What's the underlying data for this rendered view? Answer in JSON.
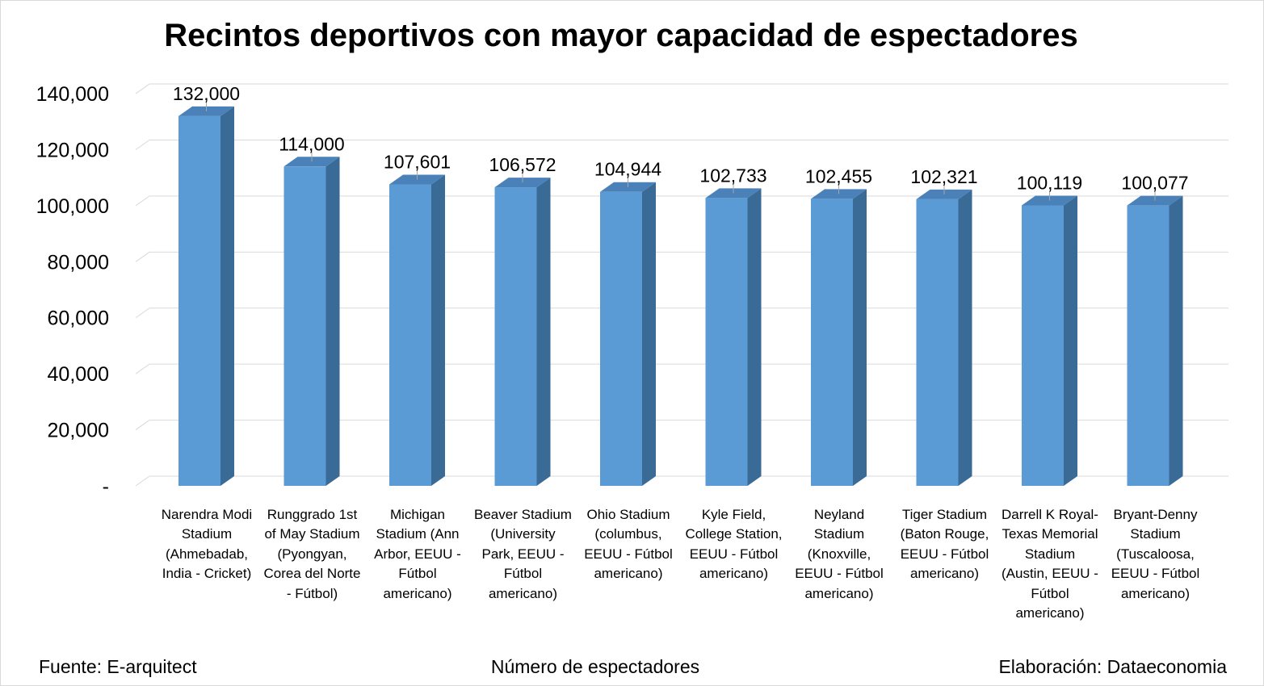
{
  "chart_data": {
    "type": "bar",
    "title": "Recintos deportivos con mayor capacidad de espectadores",
    "xlabel": "Número de espectadores",
    "ylabel": "",
    "ylim": [
      0,
      140000
    ],
    "yticks": [
      0,
      20000,
      40000,
      60000,
      80000,
      100000,
      120000,
      140000
    ],
    "ytick_labels": [
      "-",
      "20,000",
      "40,000",
      "60,000",
      "80,000",
      "100,000",
      "120,000",
      "140,000"
    ],
    "grid": true,
    "style": "3d-columns",
    "bar_color": "#5b9bd5",
    "categories": [
      "Narendra Modi Stadium (Ahmebadab, India - Cricket)",
      "Runggrado 1st of May Stadium (Pyongyan, Corea del Norte - Fútbol)",
      "Michigan Stadium (Ann Arbor, EEUU - Fútbol americano)",
      "Beaver Stadium (University Park, EEUU - Fútbol americano)",
      "Ohio Stadium (columbus, EEUU - Fútbol americano)",
      "Kyle Field, College Station, EEUU - Fútbol americano)",
      "Neyland Stadium (Knoxville, EEUU - Fútbol americano)",
      "Tiger Stadium (Baton Rouge, EEUU - Fútbol americano)",
      "Darrell K Royal-Texas Memorial Stadium (Austin, EEUU - Fútbol americano)",
      "Bryant-Denny Stadium (Tuscaloosa, EEUU - Fútbol americano)"
    ],
    "values": [
      132000,
      114000,
      107601,
      106572,
      104944,
      102733,
      102455,
      102321,
      100119,
      100077
    ],
    "data_labels": [
      "132,000",
      "114,000",
      "107,601",
      "106,572",
      "104,944",
      "102,733",
      "102,455",
      "102,321",
      "100,119",
      "100,077"
    ]
  },
  "footer": {
    "source": "Fuente:  E-arquitect",
    "credit": "Elaboración: Dataeconomia"
  }
}
